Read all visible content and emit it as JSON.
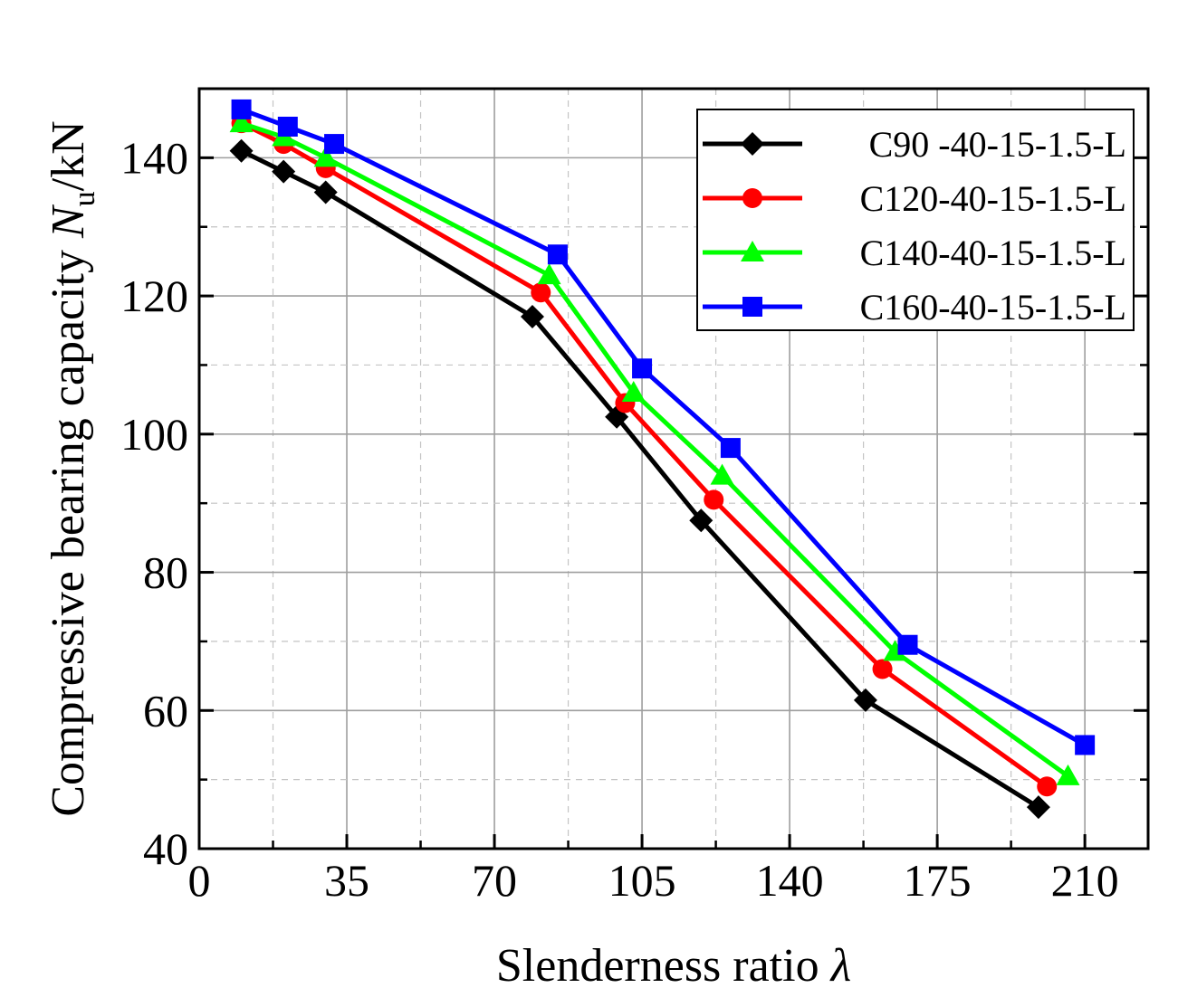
{
  "chart_data": {
    "type": "line",
    "xlabel": "Slenderness ratio",
    "xlabel_symbol": "λ",
    "ylabel": "Compressive bearing capacity",
    "ylabel_symbol": "N",
    "ylabel_subscript": "u",
    "ylabel_unit": "/kN",
    "xlim": [
      0,
      225
    ],
    "ylim": [
      40,
      150
    ],
    "xticks": [
      0,
      35,
      70,
      105,
      140,
      175,
      210
    ],
    "yticks": [
      40,
      60,
      80,
      100,
      120,
      140
    ],
    "grid": true,
    "legend_position": "top-right",
    "series": [
      {
        "name": "C90 -40-15-1.5-L",
        "color": "#000000",
        "marker": "diamond",
        "x": [
          10,
          20,
          30,
          79,
          99,
          119,
          158,
          199
        ],
        "y": [
          141,
          138,
          135,
          117,
          102.5,
          87.5,
          61.5,
          46
        ]
      },
      {
        "name": "C120-40-15-1.5-L",
        "color": "#ff0000",
        "marker": "circle",
        "x": [
          10,
          20,
          30,
          81,
          101,
          122,
          162,
          201
        ],
        "y": [
          145,
          142,
          138.5,
          120.5,
          104.5,
          90.5,
          66,
          49
        ]
      },
      {
        "name": "C140-40-15-1.5-L",
        "color": "#00ff00",
        "marker": "triangle",
        "x": [
          10,
          20,
          30,
          83,
          103,
          124,
          165,
          206
        ],
        "y": [
          145,
          143,
          140,
          123,
          106,
          94,
          68.5,
          50.5
        ]
      },
      {
        "name": "C160-40-15-1.5-L",
        "color": "#0000ff",
        "marker": "square",
        "x": [
          10,
          21,
          32,
          85,
          105,
          126,
          168,
          210
        ],
        "y": [
          147,
          144.5,
          142,
          126,
          109.5,
          98,
          69.5,
          55
        ]
      }
    ]
  }
}
